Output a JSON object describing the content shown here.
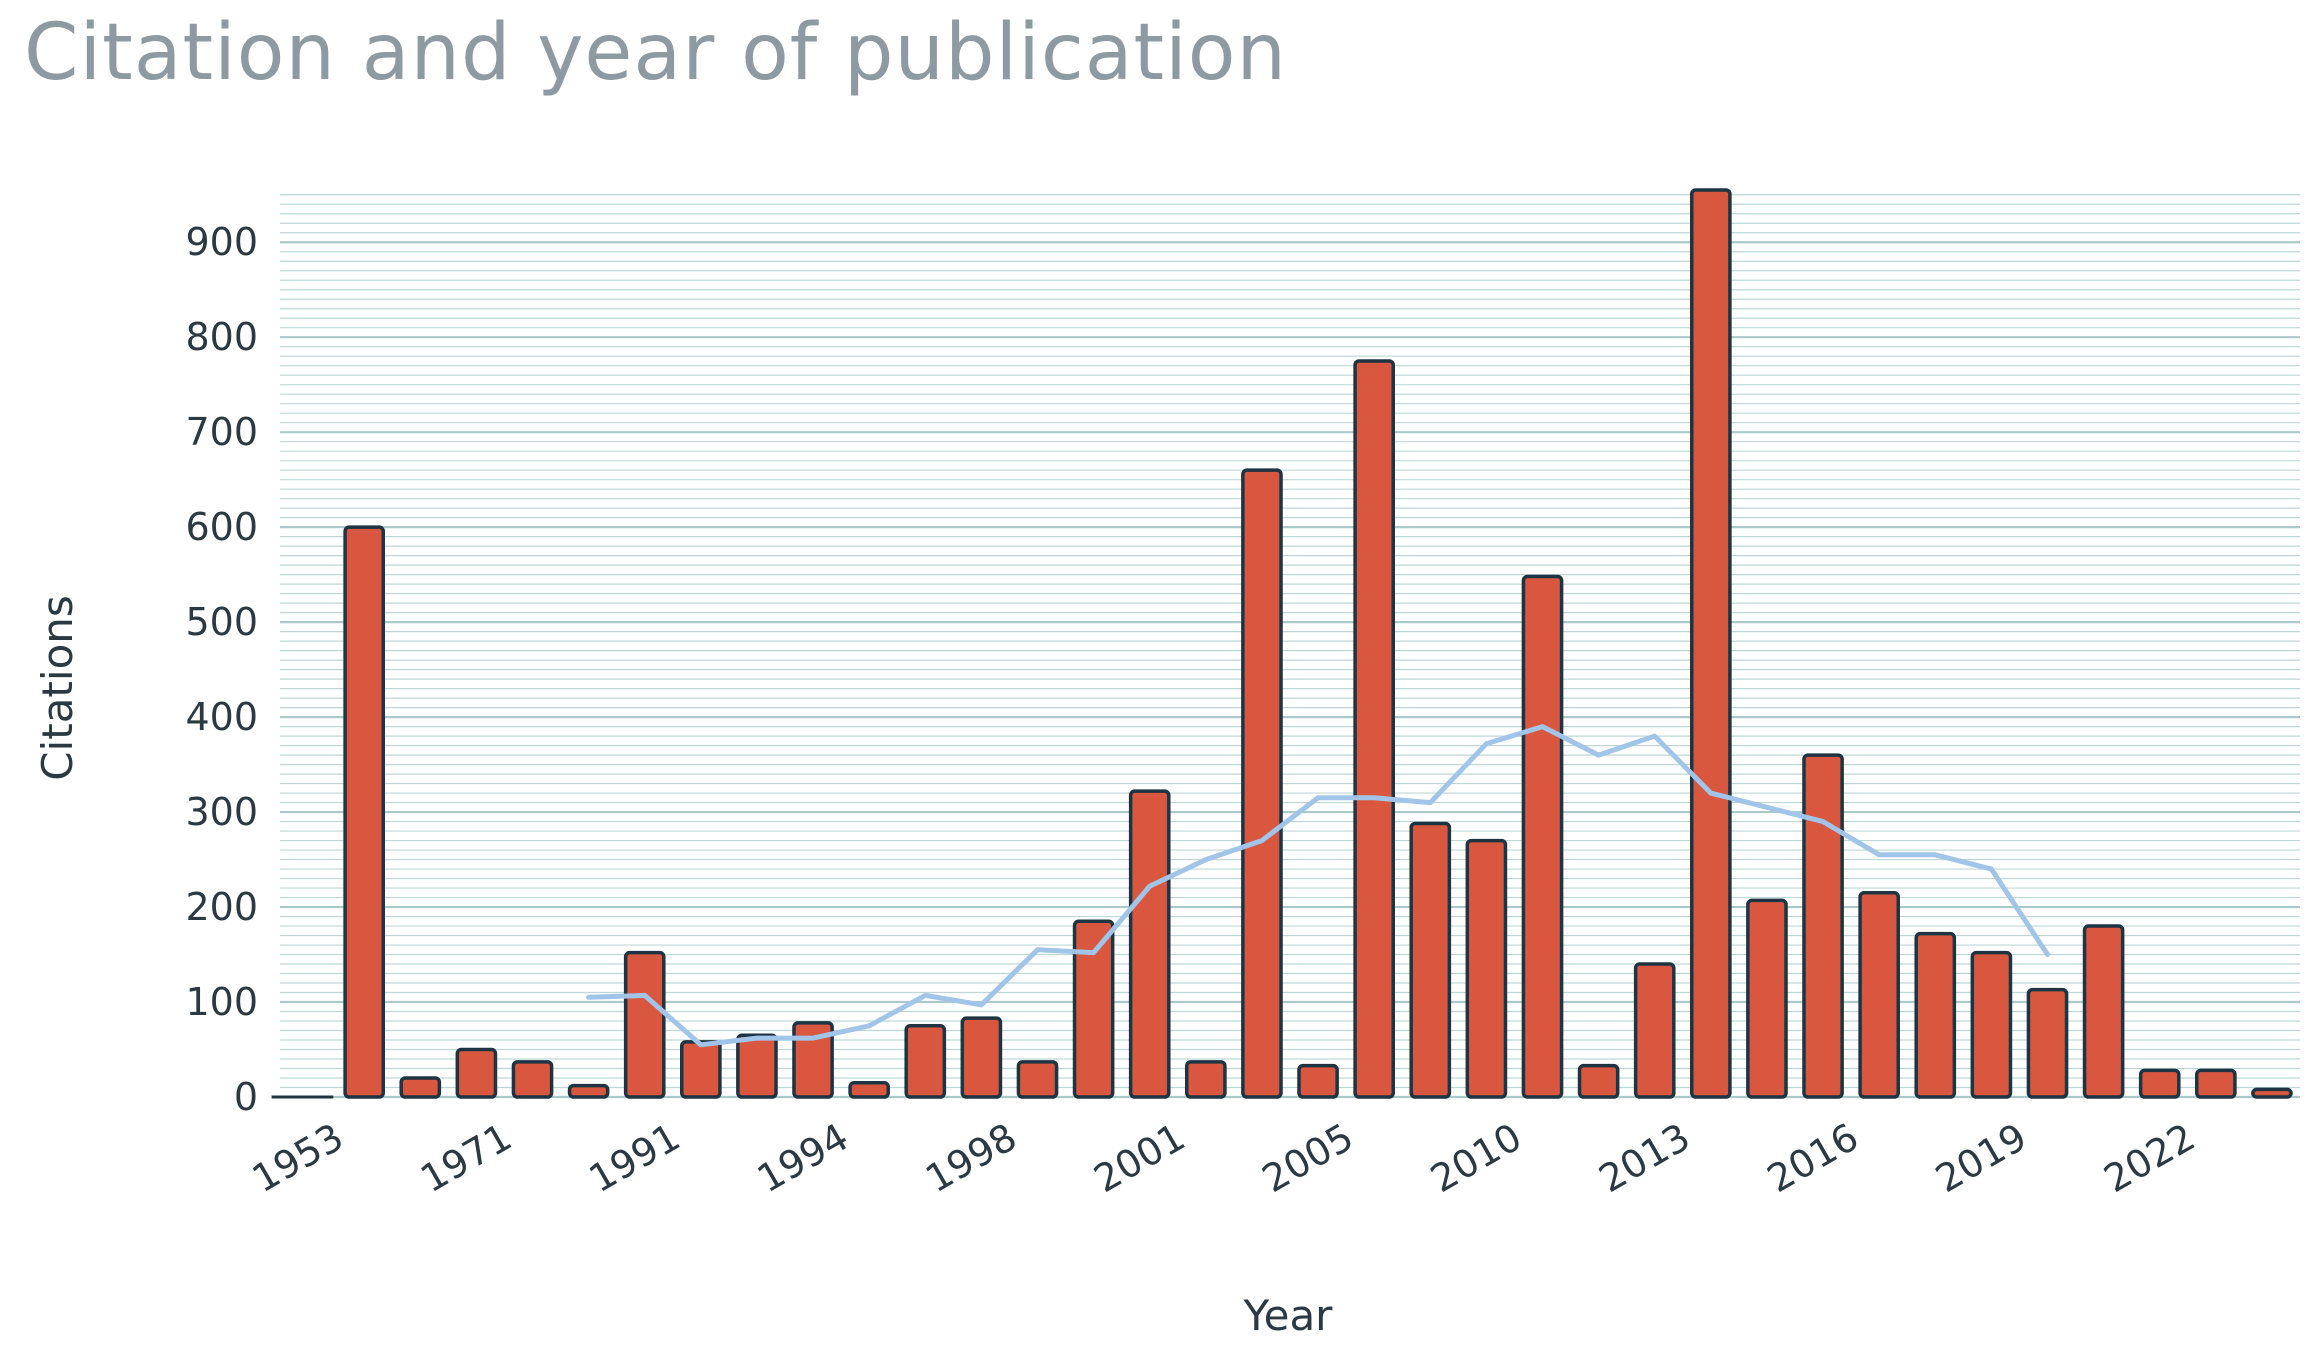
{
  "chart_data": {
    "type": "bar",
    "title": "Citation and year of publication",
    "xlabel": "Year",
    "ylabel": "Citations",
    "ylim": [
      0,
      955
    ],
    "y_ticks": [
      0,
      100,
      200,
      300,
      400,
      500,
      600,
      700,
      800,
      900
    ],
    "x_tick_labels": [
      "1953",
      "1971",
      "1991",
      "1994",
      "1998",
      "2001",
      "2005",
      "2010",
      "2013",
      "2016",
      "2019",
      "2022"
    ],
    "bar_count": 36,
    "bar_values": [
      0,
      600,
      20,
      50,
      37,
      12,
      152,
      58,
      65,
      78,
      15,
      75,
      83,
      37,
      185,
      322,
      37,
      660,
      33,
      775,
      288,
      270,
      548,
      33,
      140,
      955,
      207,
      360,
      215,
      172,
      152,
      113,
      180,
      28,
      28,
      8
    ],
    "series": [
      {
        "type": "line",
        "values": [
          null,
          null,
          null,
          null,
          null,
          105,
          107,
          55,
          62,
          62,
          75,
          107,
          97,
          155,
          152,
          222,
          250,
          270,
          315,
          315,
          310,
          372,
          390,
          360,
          380,
          320,
          305,
          290,
          255,
          255,
          240,
          150,
          null,
          null,
          null,
          null
        ]
      }
    ],
    "grid": true,
    "colors": {
      "bar": "#d9573f",
      "bar_edge": "#1e3443",
      "line": "#a1c5e8",
      "grid": "#aac9c9",
      "text": "#2b3a42",
      "title": "#8e9aa1"
    }
  }
}
